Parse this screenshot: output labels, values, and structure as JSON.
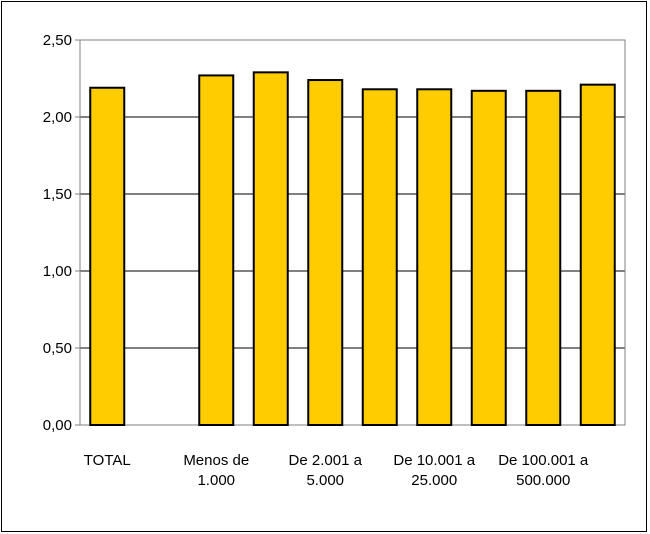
{
  "chart_data": {
    "type": "bar",
    "title": "",
    "xlabel": "",
    "ylabel": "",
    "categories": [
      [
        "TOTAL"
      ],
      [
        ""
      ],
      [
        "Menos de",
        "1.000"
      ],
      [
        ""
      ],
      [
        "De 2.001 a",
        "5.000"
      ],
      [
        ""
      ],
      [
        "De 10.001 a",
        "25.000"
      ],
      [
        ""
      ],
      [
        "De 100.001 a",
        "500.000"
      ],
      [
        ""
      ]
    ],
    "values": [
      2.19,
      null,
      2.27,
      2.29,
      2.24,
      2.18,
      2.18,
      2.17,
      2.17,
      2.21
    ],
    "ylim": [
      0,
      2.5
    ],
    "yticks": [
      0,
      0.5,
      1.0,
      1.5,
      2.0,
      2.5
    ],
    "ytick_labels": [
      "0,00",
      "0,50",
      "1,00",
      "1,50",
      "2,00",
      "2,50"
    ],
    "grid": true,
    "legend": "none",
    "colors": {
      "bar_fill": "#FFCC00",
      "bar_stroke": "#000000",
      "gridline": "#000000",
      "axis": "#808080"
    }
  }
}
